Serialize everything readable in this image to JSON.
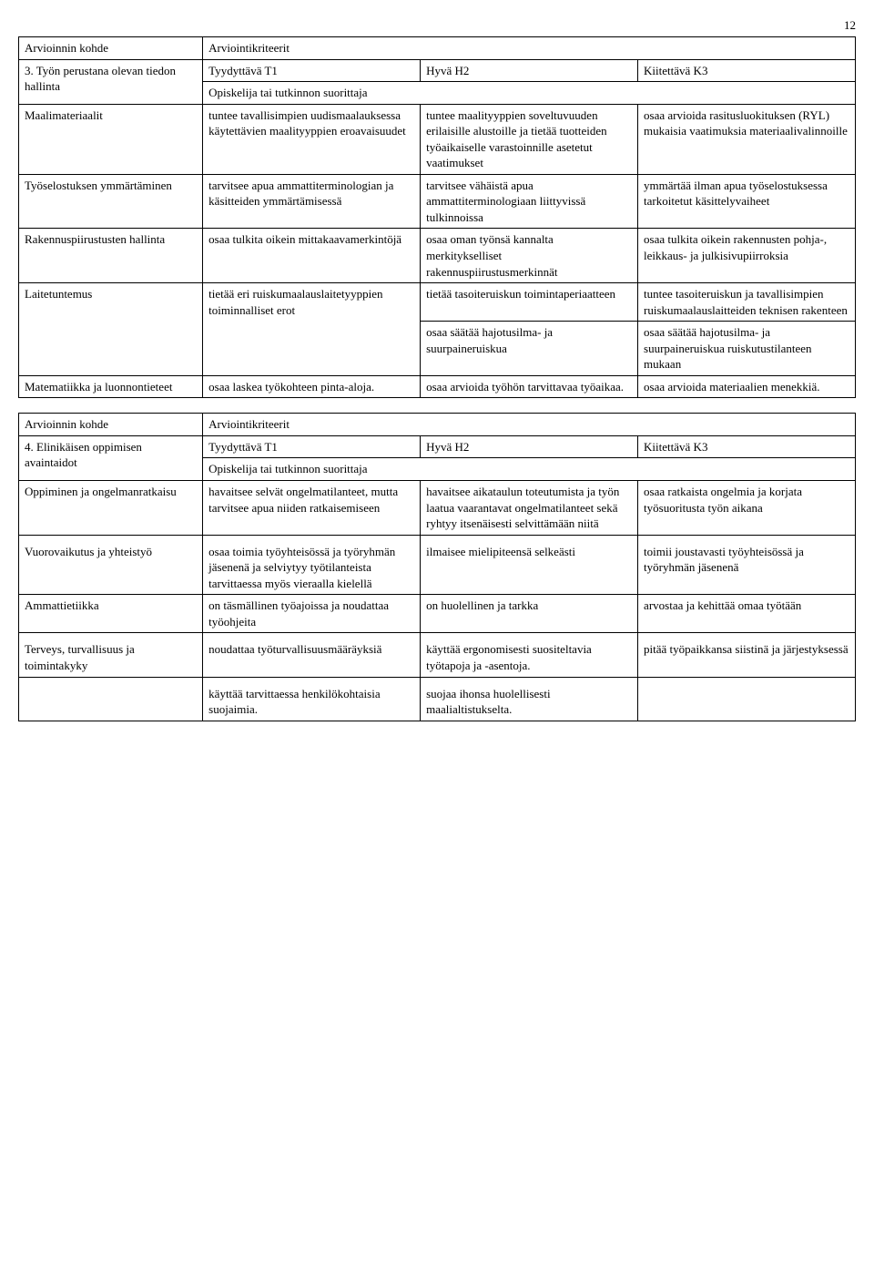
{
  "page_number": "12",
  "table1": {
    "header_label": "Arvioinnin kohde",
    "header_criteria": "Arviointikriteerit",
    "row1_label": "3. Työn perustana olevan tiedon hallinta",
    "t1": "Tyydyttävä T1",
    "h2": "Hyvä H2",
    "k3": "Kiitettävä K3",
    "subheader": "Opiskelija tai tutkinnon suorittaja",
    "r1": {
      "label": "Maalimateriaalit",
      "c1": "tuntee tavallisimpien uudismaalauksessa käytettävien maalityyppien eroavaisuudet",
      "c2": "tuntee maalityyppien soveltuvuuden erilaisille alustoille ja tietää tuotteiden työaikaiselle varastoinnille asetetut vaatimukset",
      "c3": "osaa arvioida rasitusluokituksen (RYL) mukaisia vaatimuksia materiaalivalinnoille"
    },
    "r2": {
      "label": "Työselostuksen ymmärtäminen",
      "c1": "tarvitsee apua ammattiterminologian ja käsitteiden ymmärtämisessä",
      "c2": "tarvitsee vähäistä apua ammattiterminologiaan liittyvissä tulkinnoissa",
      "c3": "ymmärtää ilman apua työselostuksessa tarkoitetut käsittelyvaiheet"
    },
    "r3": {
      "label": "Rakennuspiirustusten hallinta",
      "c1": "osaa tulkita oikein mittakaavamerkintöjä",
      "c2": "osaa oman työnsä kannalta merkitykselliset rakennuspiirustusmerkinnät",
      "c3": "osaa tulkita oikein rakennusten pohja-, leikkaus- ja julkisivupiirroksia"
    },
    "r4": {
      "label": "Laitetuntemus",
      "c1": "tietää eri ruiskumaalauslaitetyyppien toiminnalliset erot",
      "c2": "tietää tasoiteruiskun toimintaperiaatteen",
      "c3": "tuntee tasoiteruiskun ja tavallisimpien ruiskumaalauslaitteiden teknisen rakenteen"
    },
    "r4b": {
      "c2": "osaa säätää hajotusilma- ja suurpaineruiskua",
      "c3": "osaa säätää hajotusilma- ja suurpaineruiskua ruiskutustilanteen mukaan"
    },
    "r5": {
      "label": "Matematiikka ja luonnontieteet",
      "c1": "osaa laskea työkohteen pinta-aloja.",
      "c2": "osaa arvioida työhön tarvittavaa työaikaa.",
      "c3": "osaa arvioida materiaalien menekkiä."
    }
  },
  "table2": {
    "header_label": "Arvioinnin kohde",
    "header_criteria": "Arviointikriteerit",
    "row1_label": "4. Elinikäisen oppimisen avaintaidot",
    "t1": "Tyydyttävä T1",
    "h2": "Hyvä H2",
    "k3": "Kiitettävä K3",
    "subheader": "Opiskelija tai tutkinnon suorittaja",
    "r1": {
      "label": "Oppiminen ja ongelmanratkaisu",
      "c1": "havaitsee selvät ongelmatilanteet, mutta tarvitsee apua niiden ratkaisemiseen",
      "c2": "havaitsee aikataulun toteutumista ja työn laatua vaarantavat ongelmatilanteet sekä ryhtyy itsenäisesti selvittämään niitä",
      "c3": "osaa ratkaista ongelmia ja korjata työsuoritusta työn aikana"
    },
    "r2": {
      "label": "Vuorovaikutus ja yhteistyö",
      "c1": "osaa toimia työyhteisössä ja työryhmän jäsenenä ja selviytyy työtilanteista tarvittaessa myös vieraalla kielellä",
      "c2": "ilmaisee mielipiteensä selkeästi",
      "c3": "toimii joustavasti työyhteisössä ja työryhmän jäsenenä"
    },
    "r3": {
      "label": "Ammattietiikka",
      "c1": "on täsmällinen työajoissa ja noudattaa työohjeita",
      "c2": "on huolellinen ja tarkka",
      "c3": "arvostaa ja kehittää omaa työtään"
    },
    "r4": {
      "label": "Terveys, turvallisuus ja toimintakyky",
      "c1": "noudattaa työturvallisuusmääräyksiä",
      "c2": "käyttää ergonomisesti suositeltavia työtapoja ja -asentoja.",
      "c3": "pitää työpaikkansa siistinä ja järjestyksessä"
    },
    "r4b": {
      "c1": "käyttää tarvittaessa henkilökohtaisia suojaimia.",
      "c2": "suojaa ihonsa huolellisesti maalialtistukselta."
    }
  }
}
